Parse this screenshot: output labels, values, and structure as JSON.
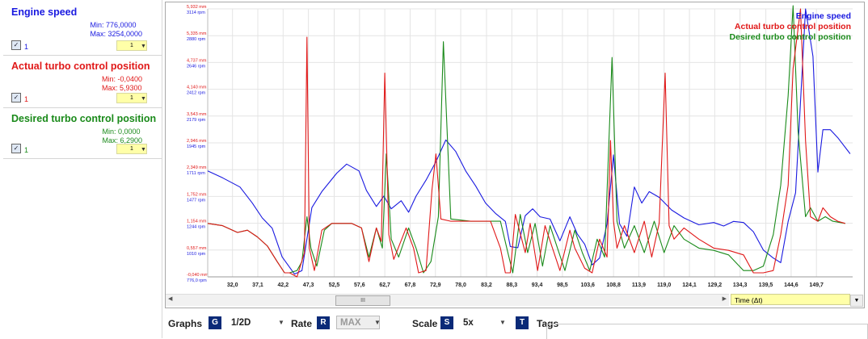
{
  "series_panel": [
    {
      "name": "Engine speed",
      "color": "#1a1ae0",
      "min_label": "Min: 776,0000",
      "max_label": "Max: 3254,0000",
      "checked": "✓",
      "index": "1",
      "select": "1"
    },
    {
      "name": "Actual turbo control position",
      "color": "#e01818",
      "min_label": "Min: -0,0400",
      "max_label": "Max: 5,9300",
      "checked": "✓",
      "index": "1",
      "select": "1"
    },
    {
      "name": "Desired turbo control position",
      "color": "#1a8a1a",
      "min_label": "Min: 0,0000",
      "max_label": "Max: 6,2900",
      "checked": "✓",
      "index": "1",
      "select": "1"
    }
  ],
  "chart_data": {
    "type": "line",
    "xlim": [
      27.0,
      157.0
    ],
    "x_ticks": [
      "32,0",
      "37,1",
      "42,2",
      "47,3",
      "52,5",
      "57,6",
      "62,7",
      "67,8",
      "72,9",
      "78,0",
      "83,2",
      "88,3",
      "93,4",
      "98,5",
      "103,6",
      "108,8",
      "113,9",
      "119,0",
      "124,1",
      "129,2",
      "134,3",
      "139,5",
      "144,6",
      "149,7"
    ],
    "y_ticks_mm": [
      "5,932 mm",
      "5,335 mm",
      "4,737 mm",
      "4,140 mm",
      "3,543 mm",
      "2,946 mm",
      "2,349 mm",
      "1,752 mm",
      "1,154 mm",
      "0,557 mm",
      "-0,040 mm"
    ],
    "y_ticks_rpm": [
      "3114 rpm",
      "2880 rpm",
      "2646 rpm",
      "2412 rpm",
      "2179 rpm",
      "1945 rpm",
      "1711 rpm",
      "1477 rpm",
      "1244 rpm",
      "1010 rpm",
      "776,0 rpm"
    ],
    "ylim_mm": [
      -0.04,
      5.932
    ],
    "ylim_rpm": [
      776,
      3114
    ],
    "legend": [
      "Engine speed",
      "Actual turbo control position",
      "Desired turbo control position"
    ],
    "grid": true,
    "series": [
      {
        "name": "Engine speed",
        "color": "#1a1ae0",
        "x": [
          27.0,
          30.0,
          33.5,
          36.0,
          38.0,
          40.0,
          42.0,
          44.5,
          46.0,
          48.0,
          50.0,
          53.0,
          55.0,
          57.5,
          59.0,
          61.0,
          62.5,
          64.0,
          66.0,
          67.5,
          69.0,
          71.0,
          73.0,
          75.0,
          77.0,
          79.0,
          81.0,
          83.0,
          85.0,
          87.0,
          88.0,
          89.5,
          91.0,
          92.5,
          94.0,
          96.0,
          98.0,
          100.0,
          101.5,
          103.0,
          104.5,
          106.0,
          107.5,
          108.8,
          110.0,
          111.5,
          113.0,
          114.5,
          116.0,
          118.0,
          120.5,
          123.0,
          126.0,
          129.0,
          131.0,
          133.0,
          135.0,
          137.0,
          139.0,
          141.0,
          142.5,
          144.0,
          145.5,
          147.5,
          149.0,
          150.0,
          151.0,
          152.5,
          154.0,
          156.5
        ],
        "y": [
          1700,
          1640,
          1560,
          1420,
          1290,
          1200,
          950,
          800,
          830,
          1380,
          1520,
          1680,
          1760,
          1700,
          1530,
          1390,
          1480,
          1370,
          1440,
          1340,
          1480,
          1620,
          1780,
          1970,
          1870,
          1700,
          1570,
          1420,
          1330,
          1260,
          1040,
          1030,
          1310,
          1370,
          1300,
          1280,
          1090,
          1300,
          1150,
          1060,
          880,
          940,
          1240,
          1840,
          1240,
          1130,
          1560,
          1420,
          1520,
          1470,
          1360,
          1290,
          1230,
          1250,
          1220,
          1260,
          1250,
          1170,
          1010,
          940,
          900,
          1260,
          1510,
          3114,
          2700,
          1690,
          2060,
          2060,
          1990,
          1850
        ]
      },
      {
        "name": "Actual turbo control position",
        "color": "#e01818",
        "x": [
          27.0,
          30.0,
          33.0,
          35.0,
          37.0,
          39.0,
          41.0,
          42.5,
          43.5,
          45.0,
          46.5,
          47.0,
          47.5,
          48.5,
          50.0,
          52.0,
          56.0,
          58.0,
          59.5,
          61.0,
          62.0,
          62.7,
          63.5,
          64.5,
          67.0,
          68.5,
          69.5,
          71.0,
          72.2,
          73.0,
          74.0,
          76.0,
          80.0,
          84.0,
          86.0,
          87.0,
          88.0,
          89.0,
          91.0,
          92.0,
          93.5,
          95.0,
          96.5,
          98.0,
          100.0,
          101.0,
          103.0,
          104.5,
          106.0,
          107.5,
          108.2,
          108.8,
          109.5,
          111.0,
          113.0,
          115.0,
          116.5,
          118.0,
          119.2,
          120.0,
          121.0,
          123.0,
          126.0,
          129.0,
          132.0,
          135.0,
          137.0,
          139.0,
          141.0,
          142.5,
          144.0,
          145.0,
          146.5,
          147.5,
          148.5,
          150.0,
          151.0,
          152.5,
          154.0,
          155.5
        ],
        "y": [
          1.15,
          1.1,
          0.95,
          1.0,
          0.85,
          0.65,
          0.3,
          0.05,
          0.05,
          -0.04,
          0.5,
          5.3,
          0.6,
          0.1,
          1.0,
          1.15,
          1.15,
          1.05,
          0.3,
          1.05,
          0.75,
          4.5,
          0.9,
          0.35,
          1.05,
          0.6,
          0.05,
          0.1,
          1.9,
          2.7,
          1.25,
          1.2,
          1.2,
          1.2,
          0.6,
          0.05,
          0.05,
          1.35,
          0.5,
          1.15,
          0.1,
          1.1,
          0.6,
          0.1,
          1.0,
          0.6,
          0.15,
          0.05,
          0.8,
          0.4,
          3.0,
          1.2,
          0.6,
          1.1,
          0.5,
          1.2,
          0.4,
          1.15,
          4.5,
          1.1,
          0.8,
          1.05,
          0.8,
          0.6,
          0.55,
          0.45,
          0.05,
          0.05,
          0.1,
          0.9,
          2.0,
          4.6,
          5.93,
          3.0,
          1.3,
          1.2,
          1.5,
          1.3,
          1.2,
          1.15
        ]
      },
      {
        "name": "Desired turbo control position",
        "color": "#1a8a1a",
        "x": [
          27.0,
          30.0,
          33.0,
          35.0,
          37.0,
          39.0,
          41.0,
          42.5,
          43.5,
          45.0,
          46.0,
          47.0,
          47.8,
          49.0,
          50.5,
          52.0,
          56.0,
          58.0,
          59.5,
          61.0,
          62.2,
          63.0,
          64.0,
          65.5,
          67.5,
          69.0,
          70.5,
          72.0,
          73.5,
          74.5,
          76.0,
          80.0,
          84.0,
          86.0,
          87.5,
          88.5,
          90.0,
          91.5,
          93.0,
          94.5,
          96.0,
          97.5,
          99.0,
          101.0,
          102.5,
          104.0,
          105.5,
          107.0,
          108.5,
          109.5,
          111.0,
          113.0,
          115.0,
          117.0,
          119.0,
          121.0,
          123.0,
          126.0,
          129.0,
          132.0,
          135.0,
          137.0,
          139.0,
          141.0,
          142.5,
          144.0,
          145.0,
          146.0,
          147.5,
          148.5,
          150.0,
          151.5,
          153.0,
          155.5
        ],
        "y": [
          1.15,
          1.1,
          0.95,
          1.0,
          0.85,
          0.65,
          0.3,
          0.05,
          0.05,
          0.1,
          0.3,
          1.3,
          0.6,
          0.2,
          1.0,
          1.15,
          1.15,
          1.05,
          0.4,
          1.05,
          0.6,
          2.7,
          0.8,
          0.4,
          1.05,
          0.6,
          0.05,
          0.3,
          1.3,
          5.2,
          1.25,
          1.2,
          1.2,
          1.2,
          0.5,
          0.05,
          1.35,
          0.5,
          1.15,
          0.2,
          1.1,
          0.6,
          0.1,
          1.0,
          0.5,
          0.1,
          0.8,
          0.4,
          4.85,
          1.2,
          0.6,
          1.1,
          0.5,
          1.2,
          0.5,
          1.1,
          0.8,
          0.6,
          0.55,
          0.45,
          0.1,
          0.1,
          0.2,
          0.9,
          2.0,
          4.0,
          6.29,
          3.2,
          1.3,
          1.5,
          1.2,
          1.3,
          1.2,
          1.15
        ]
      }
    ]
  },
  "scrollbar": {
    "thumb_label": "III",
    "left_arrow": "◀",
    "right_arrow": "▶"
  },
  "time_select": {
    "value": "Time (Δt)",
    "arrow": "▼"
  },
  "bottom": {
    "graphs_label": "Graphs",
    "graphs_key": "G",
    "graphs_value": "1/2D",
    "rate_label": "Rate",
    "rate_key": "R",
    "rate_value": "MAX",
    "scale_label": "Scale",
    "scale_key": "S",
    "scale_value": "5x",
    "tags_key": "T",
    "tags_label": "Tags",
    "arrow": "▼"
  }
}
